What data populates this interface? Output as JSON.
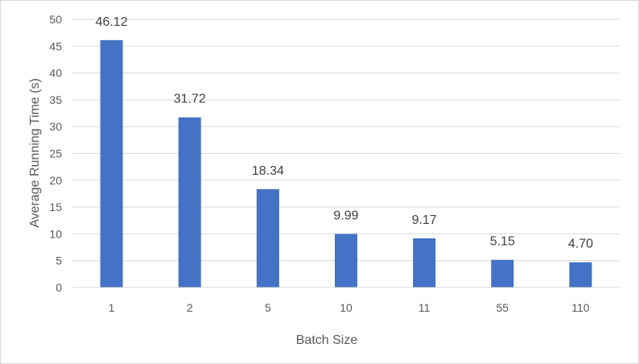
{
  "chart_data": {
    "type": "bar",
    "title": "",
    "xlabel": "Batch Size",
    "ylabel": "Average Running Time (s)",
    "categories": [
      "1",
      "2",
      "5",
      "10",
      "11",
      "55",
      "110"
    ],
    "values": [
      46.12,
      31.72,
      18.34,
      9.99,
      9.17,
      5.15,
      4.7
    ],
    "data_labels": [
      "46.12",
      "31.72",
      "18.34",
      "9.99",
      "9.17",
      "5.15",
      "4.70"
    ],
    "ylim": [
      0,
      50
    ],
    "yticks": [
      "0",
      "5",
      "10",
      "15",
      "20",
      "25",
      "30",
      "35",
      "40",
      "45",
      "50"
    ],
    "grid": true,
    "legend": "none",
    "bar_color": "#4472C4",
    "grid_color": "#d9d9d9"
  }
}
